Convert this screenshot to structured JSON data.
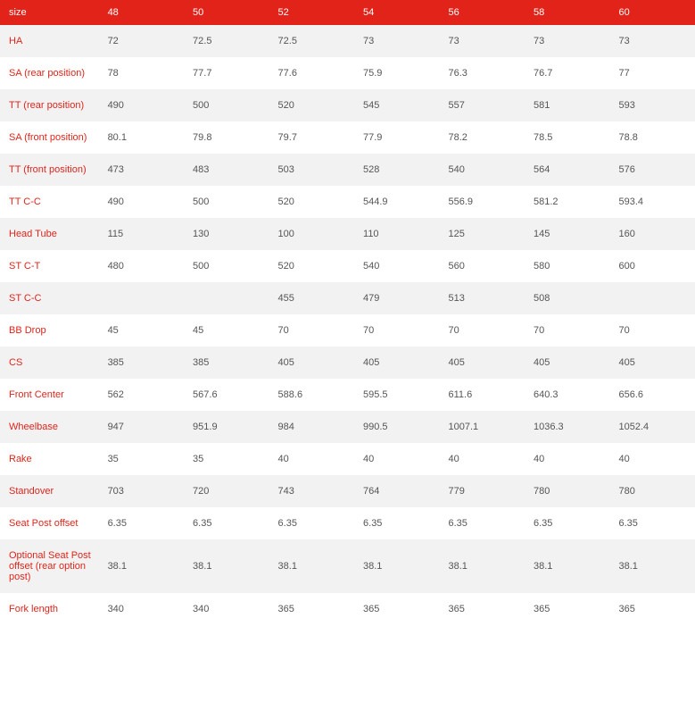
{
  "table": {
    "type": "table",
    "background_colors": {
      "header": "#e2231a",
      "odd_row": "#f2f2f2",
      "even_row": "#ffffff"
    },
    "text_colors": {
      "header": "#ffffff",
      "label": "#e2231a",
      "value": "#555555"
    },
    "font_size": 11,
    "columns": [
      "size",
      "48",
      "50",
      "52",
      "54",
      "56",
      "58",
      "60"
    ],
    "rows": [
      {
        "label": "HA",
        "values": [
          "72",
          "72.5",
          "72.5",
          "73",
          "73",
          "73",
          "73"
        ]
      },
      {
        "label": "SA (rear position)",
        "values": [
          "78",
          "77.7",
          "77.6",
          "75.9",
          "76.3",
          "76.7",
          "77"
        ]
      },
      {
        "label": "TT (rear position)",
        "values": [
          "490",
          "500",
          "520",
          "545",
          "557",
          "581",
          "593"
        ]
      },
      {
        "label": "SA (front position)",
        "values": [
          "80.1",
          "79.8",
          "79.7",
          "77.9",
          "78.2",
          "78.5",
          "78.8"
        ]
      },
      {
        "label": "TT (front position)",
        "values": [
          "473",
          "483",
          "503",
          "528",
          "540",
          "564",
          "576"
        ]
      },
      {
        "label": "TT C-C",
        "values": [
          "490",
          "500",
          "520",
          "544.9",
          "556.9",
          "581.2",
          "593.4"
        ]
      },
      {
        "label": "Head Tube",
        "values": [
          "115",
          "130",
          "100",
          "110",
          "125",
          "145",
          "160"
        ]
      },
      {
        "label": "ST C-T",
        "values": [
          "480",
          "500",
          "520",
          "540",
          "560",
          "580",
          "600"
        ]
      },
      {
        "label": "ST C-C",
        "values": [
          "",
          "",
          "455",
          "479",
          "513",
          "508",
          ""
        ]
      },
      {
        "label": "BB Drop",
        "values": [
          "45",
          "45",
          "70",
          "70",
          "70",
          "70",
          "70"
        ]
      },
      {
        "label": "CS",
        "values": [
          "385",
          "385",
          "405",
          "405",
          "405",
          "405",
          "405"
        ]
      },
      {
        "label": "Front Center",
        "values": [
          "562",
          "567.6",
          "588.6",
          "595.5",
          "611.6",
          "640.3",
          "656.6"
        ]
      },
      {
        "label": "Wheelbase",
        "values": [
          "947",
          "951.9",
          "984",
          "990.5",
          "1007.1",
          "1036.3",
          "1052.4"
        ]
      },
      {
        "label": "Rake",
        "values": [
          "35",
          "35",
          "40",
          "40",
          "40",
          "40",
          "40"
        ]
      },
      {
        "label": "Standover",
        "values": [
          "703",
          "720",
          "743",
          "764",
          "779",
          "780",
          "780"
        ]
      },
      {
        "label": "Seat Post offset",
        "values": [
          "6.35",
          "6.35",
          "6.35",
          "6.35",
          "6.35",
          "6.35",
          "6.35"
        ]
      },
      {
        "label": "Optional Seat Post offset (rear option post)",
        "values": [
          "38.1",
          "38.1",
          "38.1",
          "38.1",
          "38.1",
          "38.1",
          "38.1"
        ]
      },
      {
        "label": "Fork length",
        "values": [
          "340",
          "340",
          "365",
          "365",
          "365",
          "365",
          "365"
        ]
      }
    ]
  }
}
